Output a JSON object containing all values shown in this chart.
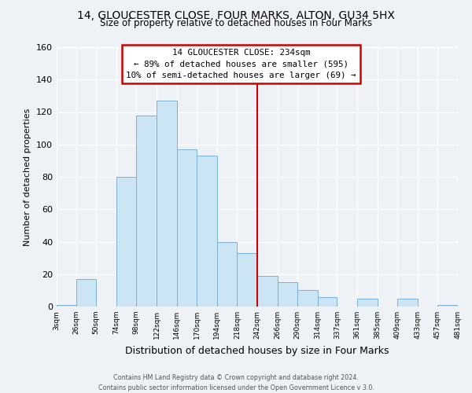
{
  "title1": "14, GLOUCESTER CLOSE, FOUR MARKS, ALTON, GU34 5HX",
  "title2": "Size of property relative to detached houses in Four Marks",
  "xlabel": "Distribution of detached houses by size in Four Marks",
  "ylabel": "Number of detached properties",
  "bin_edges": [
    3,
    26,
    50,
    74,
    98,
    122,
    146,
    170,
    194,
    218,
    242,
    266,
    290,
    314,
    337,
    361,
    385,
    409,
    433,
    457,
    481
  ],
  "bin_counts": [
    1,
    17,
    0,
    80,
    118,
    127,
    97,
    93,
    40,
    33,
    19,
    15,
    10,
    6,
    0,
    5,
    0,
    5,
    0,
    1
  ],
  "bar_facecolor": "#cce5f5",
  "bar_edgecolor": "#7ab0d4",
  "vline_x": 242,
  "vline_color": "#cc0000",
  "annotation_title": "14 GLOUCESTER CLOSE: 234sqm",
  "annotation_line1": "← 89% of detached houses are smaller (595)",
  "annotation_line2": "10% of semi-detached houses are larger (69) →",
  "box_edgecolor": "#cc0000",
  "box_facecolor": "#ffffff",
  "ylim": [
    0,
    160
  ],
  "xlim_left": 3,
  "xlim_right": 481,
  "background_color": "#eef2f7",
  "grid_color": "#ffffff",
  "footer1": "Contains HM Land Registry data © Crown copyright and database right 2024.",
  "footer2": "Contains public sector information licensed under the Open Government Licence v 3.0.",
  "yticks": [
    0,
    20,
    40,
    60,
    80,
    100,
    120,
    140,
    160
  ]
}
